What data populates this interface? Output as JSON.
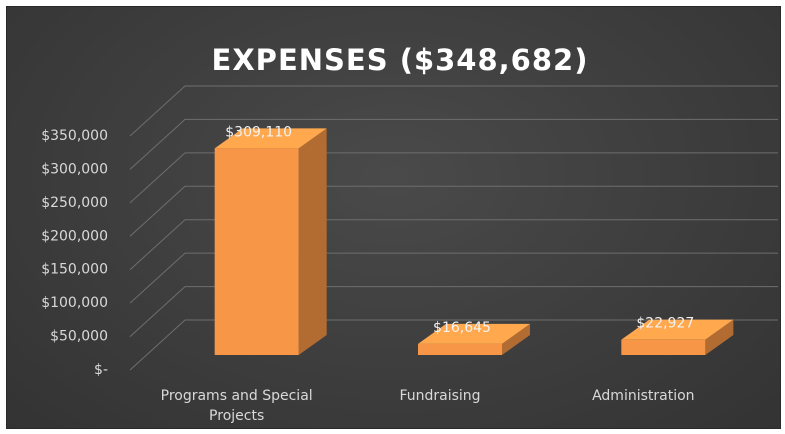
{
  "chart_data": {
    "type": "bar3d",
    "title": "EXPENSES ($348,682)",
    "categories": [
      "Programs and Special Projects",
      "Fundraising",
      "Administration"
    ],
    "values": [
      309110,
      16645,
      22927
    ],
    "value_labels": [
      "$309,110",
      "$16,645",
      "$22,927"
    ],
    "color": "#f79646",
    "ylim": [
      0,
      350000
    ],
    "yticks": [
      {
        "value": 0,
        "label": "$-"
      },
      {
        "value": 50000,
        "label": "$50,000"
      },
      {
        "value": 100000,
        "label": "$100,000"
      },
      {
        "value": 150000,
        "label": "$150,000"
      },
      {
        "value": 200000,
        "label": "$200,000"
      },
      {
        "value": 250000,
        "label": "$250,000"
      },
      {
        "value": 300000,
        "label": "$300,000"
      },
      {
        "value": 350000,
        "label": "$350,000"
      }
    ],
    "grid": true
  }
}
